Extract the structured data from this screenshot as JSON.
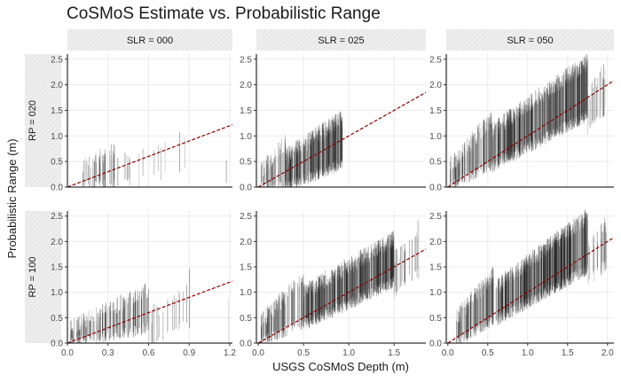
{
  "chart_data": {
    "type": "faceted-range-plot",
    "title": "CoSMoS Estimate vs. Probabilistic Range",
    "xlabel": "USGS CoSMoS Depth (m)",
    "ylabel": "Probabilistic Range (m)",
    "grid": true,
    "ylim": [
      0,
      2.6
    ],
    "yticks": [
      0.0,
      0.5,
      1.0,
      1.5,
      2.0,
      2.5
    ],
    "column_facets": [
      "SLR = 000",
      "SLR = 025",
      "SLR = 050"
    ],
    "row_facets": [
      "RP = 020",
      "RP = 100"
    ],
    "columns": [
      {
        "facet": "SLR = 000",
        "xlim": [
          0,
          1.22
        ],
        "xticks": [
          0.0,
          0.3,
          0.6,
          0.9,
          1.2
        ]
      },
      {
        "facet": "SLR = 025",
        "xlim": [
          -0.02,
          1.85
        ],
        "xticks": [
          0.0,
          0.5,
          1.0,
          1.5
        ]
      },
      {
        "facet": "SLR = 050",
        "xlim": [
          -0.02,
          2.08
        ],
        "xticks": [
          0.0,
          0.5,
          1.0,
          1.5,
          2.0
        ]
      }
    ],
    "reference_line": {
      "style": "dashed",
      "color": "#8b0000",
      "description": "y = x"
    },
    "panels": [
      {
        "row": "RP = 020",
        "col": "SLR = 000",
        "clusters": [
          {
            "x_range": [
              0.1,
              0.36
            ],
            "y_low": [
              0.0,
              0.05
            ],
            "y_high": [
              0.4,
              0.72
            ],
            "density": 40
          },
          {
            "x_range": [
              0.36,
              0.9
            ],
            "y_low": [
              0.0,
              0.35
            ],
            "y_high": [
              0.45,
              1.1
            ],
            "density": 14
          },
          {
            "x_range": [
              1.15,
              1.18
            ],
            "y_low": [
              0.0,
              0.0
            ],
            "y_high": [
              0.5,
              0.6
            ],
            "density": 1
          }
        ]
      },
      {
        "row": "RP = 020",
        "col": "SLR = 025",
        "clusters": [
          {
            "x_range": [
              0.02,
              0.3
            ],
            "y_low": [
              0.0,
              0.05
            ],
            "y_high": [
              0.3,
              0.9
            ],
            "density": 50
          },
          {
            "x_range": [
              0.3,
              0.93
            ],
            "y_low": [
              0.0,
              0.45
            ],
            "y_high": [
              0.6,
              1.35
            ],
            "density": 260
          }
        ]
      },
      {
        "row": "RP = 020",
        "col": "SLR = 050",
        "clusters": [
          {
            "x_range": [
              0.02,
              0.55
            ],
            "y_low": [
              0.0,
              0.45
            ],
            "y_high": [
              0.4,
              1.35
            ],
            "density": 110
          },
          {
            "x_range": [
              0.55,
              1.75
            ],
            "y_low": [
              0.4,
              1.4
            ],
            "y_high": [
              1.1,
              2.45
            ],
            "density": 420
          },
          {
            "x_range": [
              1.75,
              1.98
            ],
            "y_low": [
              1.1,
              1.5
            ],
            "y_high": [
              1.8,
              2.3
            ],
            "density": 18
          }
        ]
      },
      {
        "row": "RP = 100",
        "col": "SLR = 000",
        "clusters": [
          {
            "x_range": [
              0.02,
              0.6
            ],
            "y_low": [
              0.0,
              0.3
            ],
            "y_high": [
              0.3,
              1.05
            ],
            "density": 150
          },
          {
            "x_range": [
              0.6,
              0.92
            ],
            "y_low": [
              0.0,
              0.4
            ],
            "y_high": [
              0.5,
              1.35
            ],
            "density": 20
          },
          {
            "x_range": [
              1.15,
              1.19
            ],
            "y_low": [
              0.0,
              0.0
            ],
            "y_high": [
              0.6,
              0.8
            ],
            "density": 1
          }
        ]
      },
      {
        "row": "RP = 100",
        "col": "SLR = 025",
        "clusters": [
          {
            "x_range": [
              0.02,
              0.5
            ],
            "y_low": [
              0.0,
              0.4
            ],
            "y_high": [
              0.4,
              1.3
            ],
            "density": 100
          },
          {
            "x_range": [
              0.5,
              1.5
            ],
            "y_low": [
              0.35,
              1.2
            ],
            "y_high": [
              1.0,
              2.05
            ],
            "density": 420
          },
          {
            "x_range": [
              1.5,
              1.78
            ],
            "y_low": [
              1.0,
              1.4
            ],
            "y_high": [
              1.7,
              2.3
            ],
            "density": 22
          }
        ]
      },
      {
        "row": "RP = 100",
        "col": "SLR = 050",
        "clusters": [
          {
            "x_range": [
              0.1,
              0.6
            ],
            "y_low": [
              0.0,
              0.5
            ],
            "y_high": [
              0.5,
              1.4
            ],
            "density": 110
          },
          {
            "x_range": [
              0.6,
              1.75
            ],
            "y_low": [
              0.45,
              1.45
            ],
            "y_high": [
              1.1,
              2.5
            ],
            "density": 440
          },
          {
            "x_range": [
              1.75,
              1.99
            ],
            "y_low": [
              1.2,
              1.55
            ],
            "y_high": [
              1.9,
              2.35
            ],
            "density": 20
          }
        ]
      }
    ]
  }
}
